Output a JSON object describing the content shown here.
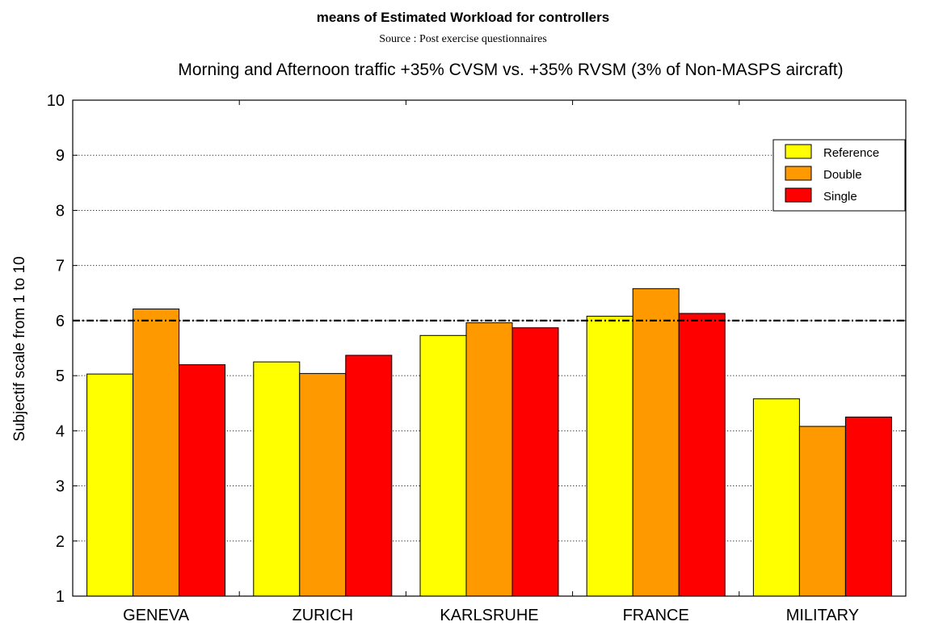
{
  "chart_data": {
    "type": "bar",
    "title": "means of Estimated Workload for controllers",
    "source": "Source : Post exercise questionnaires",
    "subtitle": "Morning and Afternoon traffic +35% CVSM vs. +35% RVSM (3% of Non-MASPS aircraft)",
    "xlabel": "",
    "ylabel": "Subjectif scale from 1 to 10",
    "ylim": [
      1,
      10
    ],
    "yticks": [
      "1",
      "2",
      "3",
      "4",
      "5",
      "6",
      "7",
      "8",
      "9",
      "10"
    ],
    "categories": [
      "GENEVA",
      "ZURICH",
      "KARLSRUHE",
      "FRANCE",
      "MILITARY"
    ],
    "series": [
      {
        "name": "Reference",
        "color": "#ffff00",
        "values": [
          5.03,
          5.25,
          5.73,
          6.08,
          4.58
        ]
      },
      {
        "name": "Double",
        "color": "#ff9900",
        "values": [
          6.21,
          5.04,
          5.96,
          6.58,
          4.08
        ]
      },
      {
        "name": "Single",
        "color": "#ff0000",
        "values": [
          5.2,
          5.37,
          5.87,
          6.13,
          4.25
        ]
      }
    ],
    "reference_line": 6,
    "grid": true,
    "legend_position": "top-right"
  }
}
